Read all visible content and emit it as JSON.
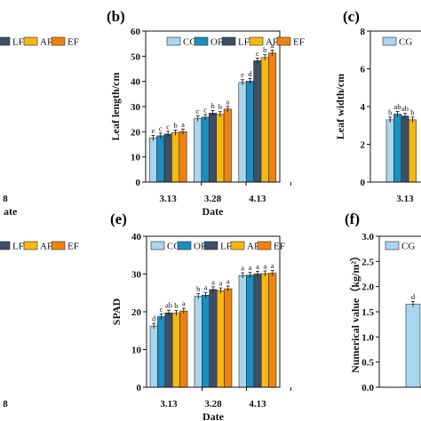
{
  "colors": {
    "CG": "#a9d6ee",
    "OF": "#1a8fc0",
    "LF": "#3d4f66",
    "AF": "#f6b812",
    "EF": "#f0820f"
  },
  "legend": [
    "CG",
    "OF",
    "LF",
    "AF",
    "EF"
  ],
  "chart_data": [
    {
      "panel": "(a)",
      "type": "bar",
      "partial": true,
      "categories": [
        "3.28",
        "4.13"
      ],
      "categories_label_text": [
        "8",
        "4.13"
      ],
      "xlabel": "ate",
      "legend_visible": [
        "LF",
        "AF",
        "EF"
      ],
      "ylim": [
        0,
        60
      ],
      "series": [
        {
          "name": "CG",
          "values": [
            null,
            31
          ],
          "letters": [
            null,
            "e"
          ]
        },
        {
          "name": "OF",
          "values": [
            null,
            34
          ],
          "letters": [
            null,
            "d"
          ]
        },
        {
          "name": "LF",
          "values": [
            null,
            44
          ],
          "letters": [
            null,
            "c"
          ]
        },
        {
          "name": "AF",
          "values": [
            26,
            48
          ],
          "letters": [
            null,
            "a"
          ]
        },
        {
          "name": "EF",
          "values": [
            28,
            46
          ],
          "letters": [
            null,
            "b"
          ]
        }
      ]
    },
    {
      "panel": "(b)",
      "type": "bar",
      "categories": [
        "3.13",
        "3.28",
        "4.13"
      ],
      "xlabel": "Date",
      "ylabel": "Leaf length/cm",
      "ylim": [
        0,
        60
      ],
      "yticks": [
        0,
        10,
        20,
        30,
        40,
        50,
        60
      ],
      "series": [
        {
          "name": "CG",
          "values": [
            17.5,
            25.2,
            39.6
          ],
          "letters": [
            "e",
            "c",
            "e"
          ]
        },
        {
          "name": "OF",
          "values": [
            18.4,
            25.8,
            40.1
          ],
          "letters": [
            "c",
            "c",
            "d"
          ]
        },
        {
          "name": "LF",
          "values": [
            19.1,
            27.4,
            48.2
          ],
          "letters": [
            "c",
            "b",
            "c"
          ]
        },
        {
          "name": "AF",
          "values": [
            19.6,
            26.9,
            49.5
          ],
          "letters": [
            "b",
            "b",
            "b"
          ]
        },
        {
          "name": "EF",
          "values": [
            20.0,
            29.0,
            51.3
          ],
          "letters": [
            "a",
            "a",
            "a"
          ]
        }
      ]
    },
    {
      "panel": "(c)",
      "type": "bar",
      "partial": true,
      "categories": [
        "3.13"
      ],
      "xlabel": "Date",
      "ylabel": "Leaf width/cm",
      "ylim": [
        0,
        8
      ],
      "yticks": [
        0,
        2,
        4,
        6,
        8
      ],
      "legend_visible": [
        "CG"
      ],
      "series": [
        {
          "name": "CG",
          "values": [
            3.3
          ],
          "letters": [
            "b"
          ]
        },
        {
          "name": "OF",
          "values": [
            3.6
          ],
          "letters": [
            "ab"
          ]
        },
        {
          "name": "LF",
          "values": [
            3.5
          ],
          "letters": [
            "ab"
          ]
        },
        {
          "name": "AF",
          "values": [
            3.3
          ],
          "letters": [
            "b"
          ]
        }
      ]
    },
    {
      "panel": "(d)",
      "type": "bar",
      "partial": true,
      "categories": [
        "3.28",
        "4.13"
      ],
      "categories_label_text": [
        "8",
        "4.13"
      ],
      "legend_visible": [
        "LF",
        "AF",
        "EF"
      ],
      "ylim": [
        0,
        40
      ],
      "series": [
        {
          "name": "CG",
          "values": [
            null,
            23
          ],
          "letters": [
            null,
            "c"
          ]
        },
        {
          "name": "OF",
          "values": [
            null,
            25
          ],
          "letters": [
            null,
            "c"
          ]
        },
        {
          "name": "LF",
          "values": [
            null,
            27
          ],
          "letters": [
            null,
            "b"
          ]
        },
        {
          "name": "AF",
          "values": [
            24,
            26
          ],
          "letters": [
            null,
            "bc"
          ]
        },
        {
          "name": "EF",
          "values": [
            25,
            29.5
          ],
          "letters": [
            "a",
            "a"
          ]
        }
      ]
    },
    {
      "panel": "(e)",
      "type": "bar",
      "categories": [
        "3.13",
        "3.28",
        "4.13"
      ],
      "xlabel": "Date",
      "ylabel": "SPAD",
      "ylim": [
        0,
        40
      ],
      "yticks": [
        0,
        10,
        20,
        30,
        40
      ],
      "series": [
        {
          "name": "CG",
          "values": [
            16.2,
            24.1,
            29.6
          ],
          "letters": [
            "d",
            "b",
            "a"
          ]
        },
        {
          "name": "OF",
          "values": [
            18.7,
            24.4,
            29.7
          ],
          "letters": [
            "c",
            "a",
            "a"
          ]
        },
        {
          "name": "LF",
          "values": [
            19.7,
            25.9,
            30.0
          ],
          "letters": [
            "ab",
            "a",
            "a"
          ]
        },
        {
          "name": "AF",
          "values": [
            19.6,
            25.6,
            30.1
          ],
          "letters": [
            "b",
            "a",
            "a"
          ]
        },
        {
          "name": "EF",
          "values": [
            20.2,
            26.1,
            30.2
          ],
          "letters": [
            "a",
            "a",
            "a"
          ]
        }
      ]
    },
    {
      "panel": "(f)",
      "type": "bar",
      "partial": true,
      "ylabel": "Numerical value（kg/m²）",
      "ylim": [
        0,
        3.0
      ],
      "yticks": [
        0.0,
        0.5,
        1.0,
        1.5,
        2.0,
        2.5,
        3.0
      ],
      "legend_visible": [
        "CG"
      ],
      "series": [
        {
          "name": "CG",
          "values": [
            1.65
          ],
          "letters": [
            "d"
          ]
        }
      ]
    }
  ]
}
